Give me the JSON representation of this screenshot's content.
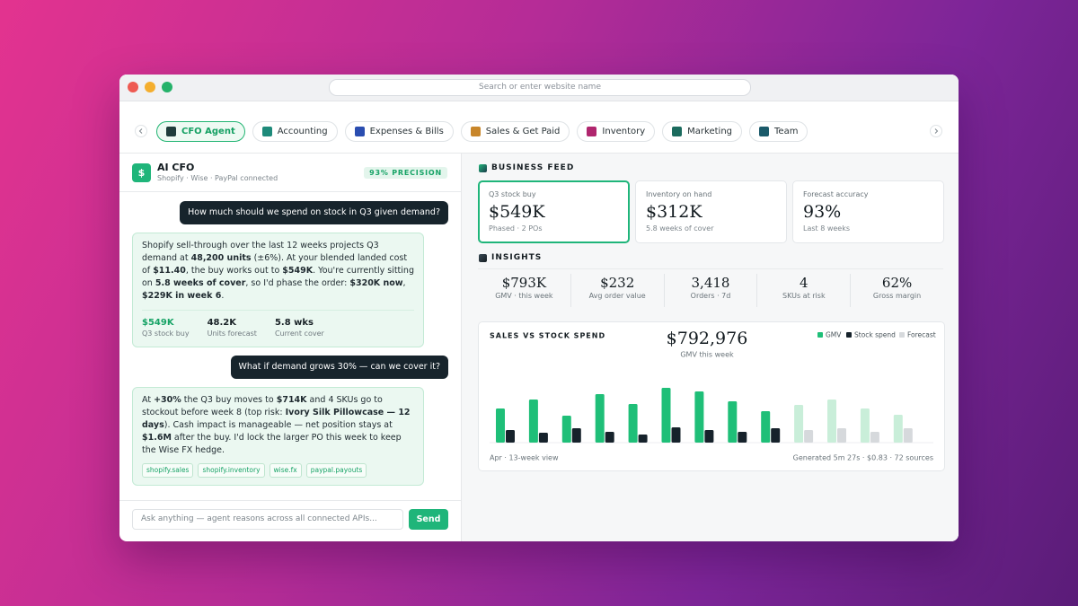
{
  "browser": {
    "url_placeholder": "Search or enter website name"
  },
  "tabs": [
    {
      "label": "CFO Agent",
      "icon_color": "#1f3d3b",
      "active": true
    },
    {
      "label": "Accounting",
      "icon_color": "#1e8a7a"
    },
    {
      "label": "Expenses & Bills",
      "icon_color": "#2a4db0"
    },
    {
      "label": "Sales & Get Paid",
      "icon_color": "#c8862a"
    },
    {
      "label": "Inventory",
      "icon_color": "#b0266e"
    },
    {
      "label": "Marketing",
      "icon_color": "#1b6b5e"
    },
    {
      "label": "Team",
      "icon_color": "#1a5a6a"
    }
  ],
  "agent": {
    "icon": "$",
    "name": "AI CFO",
    "connections": "Shopify · Wise · PayPal connected",
    "badge": "93% PRECISION"
  },
  "messages": [
    {
      "role": "user",
      "text": [
        {
          "t": "How much should we spend on stock in Q3 given demand?"
        }
      ]
    },
    {
      "role": "agent",
      "text": [
        {
          "t": "Shopify sell-through over the last 12 weeks projects Q3 demand at "
        },
        {
          "t": "48,200 units",
          "b": true
        },
        {
          "t": " (±6%). At your blended landed cost of "
        },
        {
          "t": "$11.40",
          "b": true
        },
        {
          "t": ", the buy works out to "
        },
        {
          "t": "$549K",
          "b": true
        },
        {
          "t": ". You're currently sitting on "
        },
        {
          "t": "5.8 weeks of cover",
          "b": true
        },
        {
          "t": ", so I'd phase the order: "
        },
        {
          "t": "$320K now",
          "b": true
        },
        {
          "t": ", "
        },
        {
          "t": "$229K in week 6",
          "b": true
        },
        {
          "t": "."
        }
      ],
      "stats": [
        {
          "value": "$549K",
          "label": "Q3 stock buy",
          "highlight": true
        },
        {
          "value": "48.2K",
          "label": "Units forecast"
        },
        {
          "value": "5.8 wks",
          "label": "Current cover"
        }
      ]
    },
    {
      "role": "user",
      "text": [
        {
          "t": "What if demand grows 30% — can we cover it?"
        }
      ]
    },
    {
      "role": "agent",
      "text": [
        {
          "t": "At "
        },
        {
          "t": "+30%",
          "b": true
        },
        {
          "t": " the Q3 buy moves to "
        },
        {
          "t": "$714K",
          "b": true
        },
        {
          "t": " and 4 SKUs go to stockout before week 8 (top risk: "
        },
        {
          "t": "Ivory Silk Pillowcase — 12 days",
          "b": true
        },
        {
          "t": "). Cash impact is manageable — net position stays at "
        },
        {
          "t": "$1.6M",
          "b": true
        },
        {
          "t": " after the buy. I'd lock the larger PO this week to keep the Wise FX hedge."
        }
      ],
      "tags": [
        "shopify.sales",
        "shopify.inventory",
        "wise.fx",
        "paypal.payouts"
      ]
    }
  ],
  "composer": {
    "placeholder": "Ask anything — agent reasons across all connected APIs...",
    "button": "Send"
  },
  "feed": {
    "title": "BUSINESS FEED",
    "cards": [
      {
        "label": "Q3 stock buy",
        "value": "$549K",
        "note": "Phased · 2 POs",
        "active": true
      },
      {
        "label": "Inventory on hand",
        "value": "$312K",
        "note": "5.8 weeks of cover"
      },
      {
        "label": "Forecast accuracy",
        "value": "93%",
        "note": "Last 8 weeks"
      }
    ]
  },
  "insights": {
    "title": "INSIGHTS",
    "items": [
      {
        "value": "$793K",
        "label": "GMV · this week"
      },
      {
        "value": "$232",
        "label": "Avg order value"
      },
      {
        "value": "3,418",
        "label": "Orders · 7d"
      },
      {
        "value": "4",
        "label": "SKUs at risk"
      },
      {
        "value": "62%",
        "label": "Gross margin"
      }
    ]
  },
  "chart_data": {
    "type": "bar",
    "title": "SALES VS STOCK SPEND",
    "headline": "$792,976",
    "headline_label": "GMV this week",
    "series": [
      {
        "name": "GMV",
        "color": "#1fbf78",
        "values": [
          38,
          48,
          30,
          54,
          43,
          61,
          57,
          46,
          35,
          42,
          48,
          38,
          31
        ]
      },
      {
        "name": "Stock spend",
        "color": "#16222b",
        "values": [
          14,
          11,
          16,
          12,
          9,
          17,
          14,
          12,
          16,
          14,
          16,
          12,
          16
        ]
      }
    ],
    "forecast": {
      "name": "Forecast",
      "start": 9,
      "colors": [
        "#c9eed9",
        "#d6d9dc"
      ]
    },
    "ylim": [
      0,
      70
    ],
    "footer_left": "Apr · 13-week view",
    "footer_right": "Generated 5m 27s · $0.83 · 72 sources"
  }
}
